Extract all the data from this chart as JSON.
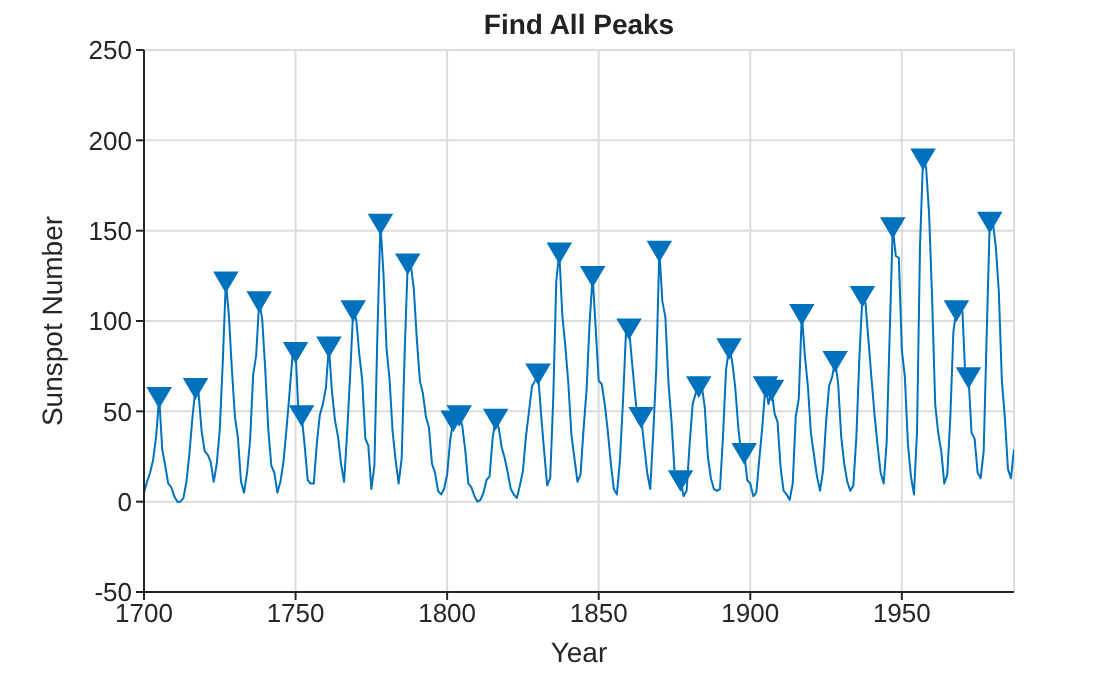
{
  "chart_data": {
    "type": "line",
    "title": "Find All Peaks",
    "xlabel": "Year",
    "ylabel": "Sunspot Number",
    "xlim": [
      1700,
      1987
    ],
    "xticks": [
      1700,
      1750,
      1800,
      1850,
      1900,
      1950
    ],
    "ylim": [
      -50,
      250
    ],
    "yticks": [
      -50,
      0,
      50,
      100,
      150,
      200,
      250
    ],
    "grid": true,
    "line_style": "solid",
    "series": [
      {
        "color": "#0072bd",
        "marker": "none",
        "x": [
          1700,
          1701,
          1702,
          1703,
          1704,
          1705,
          1706,
          1707,
          1708,
          1709,
          1710,
          1711,
          1712,
          1713,
          1714,
          1715,
          1716,
          1717,
          1718,
          1719,
          1720,
          1721,
          1722,
          1723,
          1724,
          1725,
          1726,
          1727,
          1728,
          1729,
          1730,
          1731,
          1732,
          1733,
          1734,
          1735,
          1736,
          1737,
          1738,
          1739,
          1740,
          1741,
          1742,
          1743,
          1744,
          1745,
          1746,
          1747,
          1748,
          1749,
          1750,
          1751,
          1752,
          1753,
          1754,
          1755,
          1756,
          1757,
          1758,
          1759,
          1760,
          1761,
          1762,
          1763,
          1764,
          1765,
          1766,
          1767,
          1768,
          1769,
          1770,
          1771,
          1772,
          1773,
          1774,
          1775,
          1776,
          1777,
          1778,
          1779,
          1780,
          1781,
          1782,
          1783,
          1784,
          1785,
          1786,
          1787,
          1788,
          1789,
          1790,
          1791,
          1792,
          1793,
          1794,
          1795,
          1796,
          1797,
          1798,
          1799,
          1800,
          1801,
          1802,
          1803,
          1804,
          1805,
          1806,
          1807,
          1808,
          1809,
          1810,
          1811,
          1812,
          1813,
          1814,
          1815,
          1816,
          1817,
          1818,
          1819,
          1820,
          1821,
          1822,
          1823,
          1824,
          1825,
          1826,
          1827,
          1828,
          1829,
          1830,
          1831,
          1832,
          1833,
          1834,
          1835,
          1836,
          1837,
          1838,
          1839,
          1840,
          1841,
          1842,
          1843,
          1844,
          1845,
          1846,
          1847,
          1848,
          1849,
          1850,
          1851,
          1852,
          1853,
          1854,
          1855,
          1856,
          1857,
          1858,
          1859,
          1860,
          1861,
          1862,
          1863,
          1864,
          1865,
          1866,
          1867,
          1868,
          1869,
          1870,
          1871,
          1872,
          1873,
          1874,
          1875,
          1876,
          1877,
          1878,
          1879,
          1880,
          1881,
          1882,
          1883,
          1884,
          1885,
          1886,
          1887,
          1888,
          1889,
          1890,
          1891,
          1892,
          1893,
          1894,
          1895,
          1896,
          1897,
          1898,
          1899,
          1900,
          1901,
          1902,
          1903,
          1904,
          1905,
          1906,
          1907,
          1908,
          1909,
          1910,
          1911,
          1912,
          1913,
          1914,
          1915,
          1916,
          1917,
          1918,
          1919,
          1920,
          1921,
          1922,
          1923,
          1924,
          1925,
          1926,
          1927,
          1928,
          1929,
          1930,
          1931,
          1932,
          1933,
          1934,
          1935,
          1936,
          1937,
          1938,
          1939,
          1940,
          1941,
          1942,
          1943,
          1944,
          1945,
          1946,
          1947,
          1948,
          1949,
          1950,
          1951,
          1952,
          1953,
          1954,
          1955,
          1956,
          1957,
          1958,
          1959,
          1960,
          1961,
          1962,
          1963,
          1964,
          1965,
          1966,
          1967,
          1968,
          1969,
          1970,
          1971,
          1972,
          1973,
          1974,
          1975,
          1976,
          1977,
          1978,
          1979,
          1980,
          1981,
          1982,
          1983,
          1984,
          1985,
          1986,
          1987
        ],
        "values": [
          5,
          11,
          16,
          23,
          36,
          58,
          29,
          20,
          10,
          8,
          3,
          0,
          0,
          2,
          11,
          27,
          47,
          63,
          60,
          39,
          28,
          26,
          22,
          11,
          21,
          40,
          78,
          122,
          103,
          73,
          47,
          35,
          11,
          5,
          16,
          34,
          70,
          81,
          111,
          101,
          73,
          40,
          20,
          16,
          5,
          11,
          22,
          40,
          60,
          81,
          83,
          48,
          48,
          31,
          12,
          10,
          10,
          32,
          48,
          54,
          63,
          86,
          61,
          45,
          36,
          21,
          11,
          38,
          70,
          106,
          101,
          82,
          67,
          35,
          31,
          7,
          20,
          93,
          154,
          126,
          85,
          68,
          39,
          23,
          10,
          24,
          83,
          132,
          131,
          118,
          90,
          67,
          60,
          47,
          41,
          21,
          16,
          6,
          4,
          7,
          15,
          34,
          45,
          43,
          48,
          42,
          28,
          10,
          8,
          3,
          0,
          1,
          5,
          12,
          14,
          35,
          46,
          41,
          30,
          24,
          16,
          7,
          4,
          2,
          9,
          17,
          36,
          50,
          64,
          67,
          71,
          48,
          28,
          9,
          13,
          57,
          122,
          138,
          103,
          86,
          65,
          37,
          24,
          11,
          15,
          40,
          62,
          99,
          125,
          96,
          67,
          65,
          54,
          39,
          21,
          7,
          4,
          23,
          55,
          94,
          96,
          77,
          59,
          44,
          47,
          31,
          16,
          7,
          38,
          74,
          139,
          111,
          102,
          66,
          45,
          17,
          11,
          12,
          3,
          6,
          32,
          54,
          60,
          64,
          64,
          52,
          25,
          13,
          7,
          6,
          7,
          36,
          73,
          85,
          78,
          64,
          42,
          26,
          27,
          12,
          10,
          3,
          5,
          24,
          42,
          64,
          54,
          62,
          49,
          44,
          19,
          6,
          4,
          1,
          10,
          47,
          57,
          104,
          81,
          64,
          38,
          26,
          14,
          6,
          17,
          44,
          64,
          69,
          78,
          65,
          36,
          21,
          11,
          6,
          9,
          36,
          80,
          114,
          110,
          89,
          68,
          48,
          31,
          16,
          10,
          33,
          93,
          152,
          136,
          135,
          84,
          69,
          32,
          14,
          4,
          38,
          142,
          190,
          185,
          159,
          112,
          54,
          38,
          28,
          10,
          15,
          47,
          94,
          106,
          106,
          105,
          67,
          69,
          38,
          35,
          16,
          13,
          28,
          93,
          155,
          155,
          141,
          116,
          67,
          46,
          18,
          13,
          29
        ]
      },
      {
        "type": "scatter",
        "color": "#0072bd",
        "marker": "triangle",
        "x": [
          1705,
          1717,
          1727,
          1738,
          1750,
          1752,
          1761,
          1769,
          1778,
          1787,
          1802,
          1804,
          1816,
          1830,
          1837,
          1848,
          1860,
          1864,
          1870,
          1877,
          1883,
          1893,
          1898,
          1905,
          1907,
          1917,
          1928,
          1937,
          1947,
          1957,
          1968,
          1972,
          1979
        ],
        "values": [
          58,
          63,
          122,
          111,
          83,
          48,
          86,
          106,
          154,
          132,
          45,
          48,
          46,
          71,
          138,
          125,
          96,
          47,
          139,
          12,
          64,
          85,
          27,
          64,
          62,
          104,
          78,
          114,
          152,
          190,
          106,
          69,
          155
        ]
      }
    ]
  }
}
